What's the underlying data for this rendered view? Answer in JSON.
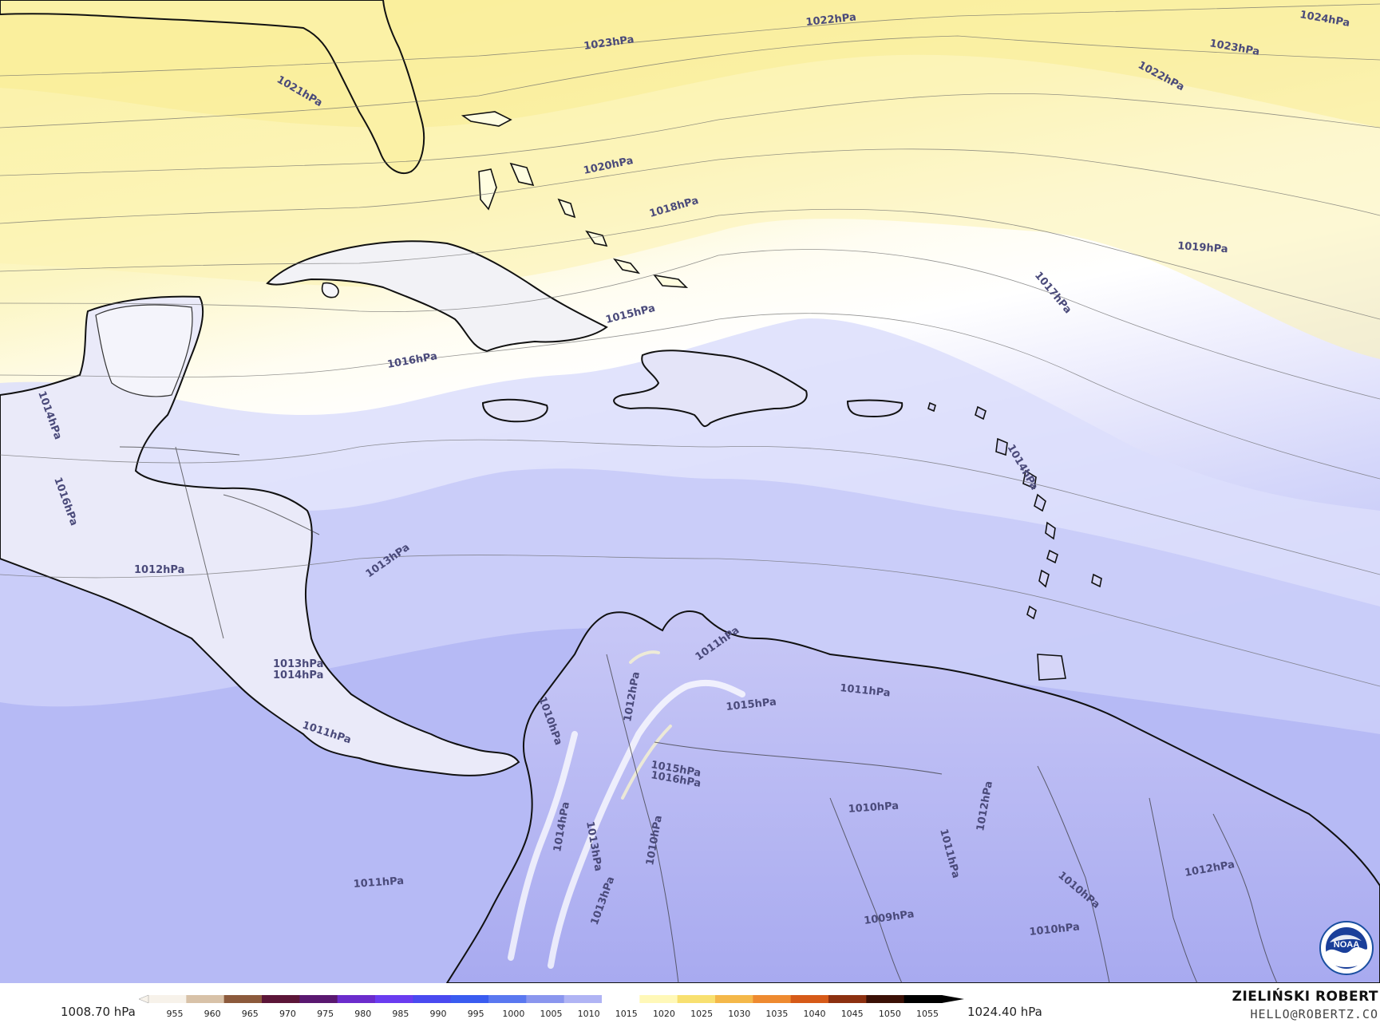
{
  "map": {
    "isobar_labels": [
      "1024hPa",
      "1023hPa",
      "1022hPa",
      "1023hPa",
      "1022hPa",
      "1021hPa",
      "1020hPa",
      "1018hPa",
      "1019hPa",
      "1017hPa",
      "1015hPa",
      "1016hPa",
      "1014hPa",
      "1016hPa",
      "1014hPa",
      "1013hPa",
      "1012hPa",
      "1011hPa",
      "1013hPa",
      "1014hPa",
      "1011hPa",
      "1015hPa",
      "1011hPa",
      "1010hPa",
      "1012hPa",
      "1016hPa",
      "1015hPa",
      "1010hPa",
      "1012hPa",
      "1011hPa",
      "1013hPa",
      "1014hPa",
      "1010hPa",
      "1010hPa",
      "1012hPa",
      "1011hPa",
      "1009hPa",
      "1010hPa",
      "1013hPa"
    ]
  },
  "legend": {
    "min_label": "1008.70 hPa",
    "max_label": "1024.40 hPa",
    "ticks": [
      "955",
      "960",
      "965",
      "970",
      "975",
      "980",
      "985",
      "990",
      "995",
      "1000",
      "1005",
      "1010",
      "1015",
      "1020",
      "1025",
      "1030",
      "1035",
      "1040",
      "1045",
      "1050",
      "1055"
    ],
    "colors": [
      "#f7f2ea",
      "#d8c2a8",
      "#8c5a3c",
      "#5c1638",
      "#5a1870",
      "#6b2ccc",
      "#6a3cf0",
      "#4a4af0",
      "#3a5cf0",
      "#5a78f0",
      "#8a96ee",
      "#b0b4f4",
      "#ffffff",
      "#fff8b8",
      "#f8e070",
      "#f4b84a",
      "#ee8a30",
      "#d65a18",
      "#8c3010",
      "#3a1006",
      "#000000"
    ]
  },
  "credits": {
    "author": "ZIELIŃSKI ROBERT",
    "contact": "HELLO@ROBERTZ.CO"
  },
  "logo": {
    "text": "NOAA"
  }
}
